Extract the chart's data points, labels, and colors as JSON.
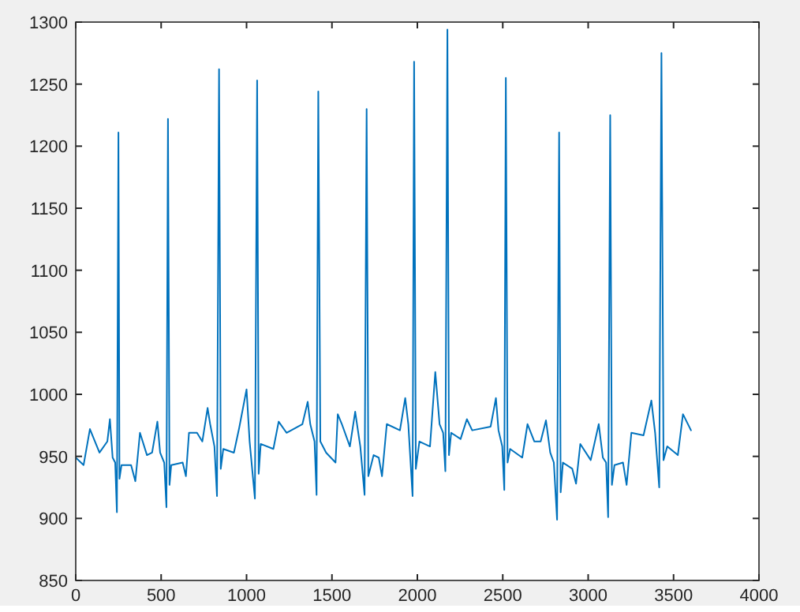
{
  "chart_data": {
    "type": "line",
    "xlim": [
      0,
      4000
    ],
    "xticks": [
      0,
      500,
      1000,
      1500,
      2000,
      2500,
      3000,
      3500,
      4000
    ],
    "ylim": [
      850,
      1300
    ],
    "yticks": [
      850,
      900,
      950,
      1000,
      1050,
      1100,
      1150,
      1200,
      1250,
      1300
    ],
    "grid": false,
    "line_style": "solid",
    "series": [
      {
        "color": "#0072bd",
        "x": [
          0,
          46,
          83,
          139,
          185,
          200,
          216,
          231,
          241,
          250,
          256,
          268,
          324,
          349,
          376,
          417,
          447,
          478,
          494,
          518,
          531,
          540,
          549,
          559,
          626,
          645,
          663,
          710,
          741,
          772,
          787,
          812,
          827,
          839,
          849,
          864,
          926,
          957,
          1000,
          1018,
          1049,
          1062,
          1071,
          1083,
          1157,
          1188,
          1234,
          1327,
          1358,
          1373,
          1398,
          1410,
          1420,
          1432,
          1466,
          1521,
          1534,
          1558,
          1605,
          1636,
          1666,
          1691,
          1703,
          1713,
          1744,
          1774,
          1793,
          1821,
          1898,
          1929,
          1947,
          1972,
          1981,
          1991,
          2012,
          2074,
          2105,
          2130,
          2151,
          2164,
          2176,
          2185,
          2198,
          2253,
          2290,
          2321,
          2429,
          2460,
          2475,
          2497,
          2509,
          2518,
          2528,
          2543,
          2614,
          2645,
          2685,
          2722,
          2753,
          2778,
          2799,
          2818,
          2830,
          2839,
          2852,
          2907,
          2929,
          2954,
          3015,
          3062,
          3086,
          3105,
          3117,
          3129,
          3139,
          3154,
          3204,
          3225,
          3253,
          3324,
          3370,
          3392,
          3416,
          3429,
          3441,
          3463,
          3525,
          3555,
          3602
        ],
        "values": [
          949,
          943,
          972,
          953,
          962,
          980,
          949,
          945,
          905,
          1211,
          932,
          943,
          943,
          930,
          969,
          951,
          953,
          978,
          953,
          945,
          909,
          1222,
          927,
          943,
          945,
          934,
          969,
          969,
          962,
          989,
          976,
          958,
          918,
          1262,
          940,
          956,
          953,
          973,
          1004,
          962,
          916,
          1253,
          936,
          960,
          956,
          978,
          969,
          976,
          994,
          976,
          962,
          919,
          1244,
          962,
          953,
          945,
          984,
          976,
          958,
          986,
          958,
          919,
          1230,
          934,
          951,
          949,
          934,
          976,
          971,
          997,
          976,
          918,
          1268,
          940,
          962,
          958,
          1018,
          976,
          969,
          938,
          1294,
          951,
          969,
          964,
          980,
          971,
          974,
          997,
          971,
          958,
          923,
          1255,
          945,
          956,
          949,
          976,
          962,
          962,
          979,
          953,
          945,
          899,
          1211,
          921,
          945,
          940,
          928,
          960,
          947,
          976,
          949,
          945,
          901,
          1225,
          927,
          943,
          945,
          927,
          969,
          967,
          995,
          969,
          925,
          1275,
          947,
          958,
          951,
          984,
          971
        ]
      }
    ]
  }
}
